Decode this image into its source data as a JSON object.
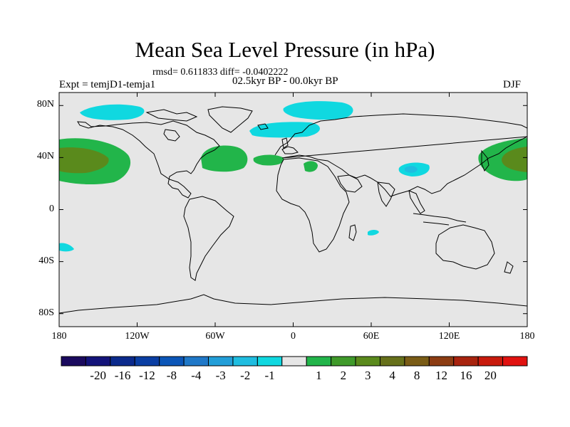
{
  "title": "Mean Sea Level Pressure (in hPa)",
  "stats": "rmsd= 0.611833 diff= -0.0402222",
  "experiment": "Expt = temjD1-temja1",
  "period": "02.5kyr BP - 00.0kyr BP",
  "season": "DJF",
  "map": {
    "projection": "cylindrical equidistant",
    "lon_range": [
      -180,
      180
    ],
    "lat_range": [
      -90,
      90
    ],
    "background_color": "#e6e6e6",
    "coastline_color": "#000000",
    "lat_ticks": [
      {
        "value": 80,
        "label": "80N"
      },
      {
        "value": 40,
        "label": "40N"
      },
      {
        "value": 0,
        "label": "0"
      },
      {
        "value": -40,
        "label": "40S"
      },
      {
        "value": -80,
        "label": "80S"
      }
    ],
    "lon_ticks": [
      {
        "value": -180,
        "label": "180"
      },
      {
        "value": -120,
        "label": "120W"
      },
      {
        "value": -60,
        "label": "60W"
      },
      {
        "value": 0,
        "label": "0"
      },
      {
        "value": 60,
        "label": "60E"
      },
      {
        "value": 120,
        "label": "120E"
      },
      {
        "value": 180,
        "label": "180"
      }
    ]
  },
  "colorbar": {
    "colors": [
      "#1a0a5e",
      "#13137a",
      "#0b2a8c",
      "#0a3ea3",
      "#0b56b8",
      "#1f78c8",
      "#229ed8",
      "#1fbde0",
      "#10d8e0",
      "#e6e6e6",
      "#22b54a",
      "#3f9a2a",
      "#5a8a1c",
      "#66701a",
      "#7a5c16",
      "#8c3c12",
      "#a8230e",
      "#c81a0c",
      "#e11210"
    ],
    "labels": [
      "-20",
      "-16",
      "-12",
      "-8",
      "-4",
      "-3",
      "-2",
      "-1",
      "1",
      "2",
      "3",
      "4",
      "8",
      "12",
      "16",
      "20"
    ]
  },
  "chart_data": {
    "type": "heatmap",
    "title": "Mean Sea Level Pressure (in hPa)",
    "variable": "MSLP difference",
    "units": "hPa",
    "legend_position": "bottom",
    "anomaly_regions": [
      {
        "region": "North Pacific (dateline, ~40N)",
        "range": "1 to 4",
        "peak_range": "3 to 4",
        "color": "#22b54a",
        "peak_color": "#5a8a1c"
      },
      {
        "region": "North Atlantic / Azores (~35N)",
        "range": "1 to 2",
        "color": "#22b54a"
      },
      {
        "region": "Mediterranean / North Africa (~35N)",
        "range": "1 to 2",
        "color": "#22b54a"
      },
      {
        "region": "Arctic / Greenland (75-85N)",
        "range": "-2 to -1",
        "color": "#10d8e0"
      },
      {
        "region": "Scandinavia (~65N)",
        "range": "-2 to -1",
        "color": "#10d8e0"
      },
      {
        "region": "Tibetan Plateau (~32N, 90E)",
        "range": "-3 to -1",
        "peak_range": "-3 to -2",
        "color": "#10d8e0",
        "peak_color": "#1fbde0"
      },
      {
        "region": "South Indian Ocean (~25S, 70E)",
        "range": "-2 to -1",
        "color": "#10d8e0"
      },
      {
        "region": "South Pacific (~35S, 175W)",
        "range": "-2 to -1",
        "color": "#10d8e0"
      }
    ]
  }
}
